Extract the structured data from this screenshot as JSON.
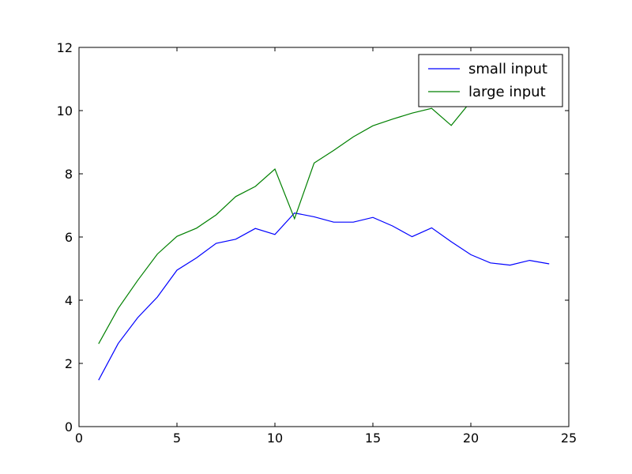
{
  "chart_data": {
    "type": "line",
    "title": "",
    "xlabel": "",
    "ylabel": "",
    "xlim": [
      0,
      25
    ],
    "ylim": [
      0,
      12
    ],
    "x_ticks": [
      0,
      5,
      10,
      15,
      20,
      25
    ],
    "y_ticks": [
      0,
      2,
      4,
      6,
      8,
      10,
      12
    ],
    "x_tick_labels": [
      "0",
      "5",
      "10",
      "15",
      "20",
      "25"
    ],
    "y_tick_labels": [
      "0",
      "2",
      "4",
      "6",
      "8",
      "10",
      "12"
    ],
    "grid": false,
    "legend_position": "top-right",
    "x": [
      1,
      2,
      3,
      4,
      5,
      6,
      7,
      8,
      9,
      10,
      11,
      12,
      13,
      14,
      15,
      16,
      17,
      18,
      19,
      20,
      21,
      22,
      23,
      24
    ],
    "series": [
      {
        "name": "small input",
        "color": "#0000ff",
        "values": [
          1.47,
          2.63,
          3.45,
          4.1,
          4.95,
          5.34,
          5.8,
          5.93,
          6.27,
          6.08,
          6.76,
          6.64,
          6.47,
          6.47,
          6.62,
          6.35,
          6.01,
          6.29,
          5.85,
          5.44,
          5.18,
          5.11,
          5.26,
          5.15
        ]
      },
      {
        "name": "large input",
        "color": "#008000",
        "values": [
          2.62,
          3.74,
          4.63,
          5.46,
          6.02,
          6.28,
          6.7,
          7.28,
          7.6,
          8.15,
          6.58,
          8.34,
          8.74,
          9.17,
          9.52,
          9.73,
          9.92,
          10.07,
          9.53,
          10.29,
          10.26,
          10.2,
          10.44,
          10.4
        ]
      }
    ]
  }
}
